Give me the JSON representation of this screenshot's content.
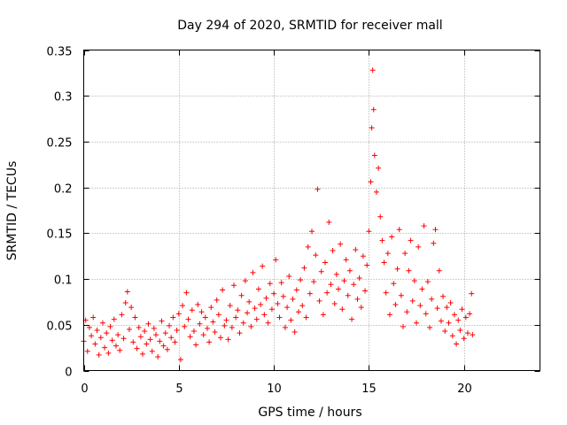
{
  "chart_data": {
    "type": "scatter",
    "title": "Day 294 of 2020, SRMTID for receiver mall",
    "xlabel": "GPS time / hours",
    "ylabel": "SRMTID / TECUs",
    "xlim": [
      0,
      24
    ],
    "ylim": [
      0,
      0.35
    ],
    "x_ticks": [
      0,
      5,
      10,
      15,
      20
    ],
    "x_tick_labels": [
      "0",
      "5",
      "10",
      "15",
      "20"
    ],
    "y_ticks": [
      0,
      0.05,
      0.1,
      0.15,
      0.2,
      0.25,
      0.3,
      0.35
    ],
    "y_tick_labels": [
      "0",
      "0.05",
      "0.1",
      "0.15",
      "0.2",
      "0.25",
      "0.3",
      "0.35"
    ],
    "grid": true,
    "marker": "+",
    "color": "#ff0000",
    "series": [
      {
        "name": "SRMTID",
        "points": [
          [
            0.0,
            0.032
          ],
          [
            0.1,
            0.055
          ],
          [
            0.2,
            0.021
          ],
          [
            0.3,
            0.047
          ],
          [
            0.4,
            0.038
          ],
          [
            0.5,
            0.058
          ],
          [
            0.6,
            0.029
          ],
          [
            0.7,
            0.044
          ],
          [
            0.8,
            0.017
          ],
          [
            0.9,
            0.036
          ],
          [
            1.0,
            0.052
          ],
          [
            1.1,
            0.025
          ],
          [
            1.2,
            0.041
          ],
          [
            1.3,
            0.019
          ],
          [
            1.4,
            0.048
          ],
          [
            1.5,
            0.033
          ],
          [
            1.6,
            0.056
          ],
          [
            1.7,
            0.027
          ],
          [
            1.8,
            0.039
          ],
          [
            1.9,
            0.022
          ],
          [
            2.0,
            0.061
          ],
          [
            2.1,
            0.035
          ],
          [
            2.2,
            0.074
          ],
          [
            2.3,
            0.086
          ],
          [
            2.4,
            0.045
          ],
          [
            2.5,
            0.069
          ],
          [
            2.6,
            0.031
          ],
          [
            2.7,
            0.058
          ],
          [
            2.8,
            0.024
          ],
          [
            2.9,
            0.047
          ],
          [
            3.0,
            0.037
          ],
          [
            3.1,
            0.018
          ],
          [
            3.2,
            0.043
          ],
          [
            3.3,
            0.029
          ],
          [
            3.4,
            0.051
          ],
          [
            3.5,
            0.034
          ],
          [
            3.6,
            0.021
          ],
          [
            3.7,
            0.046
          ],
          [
            3.8,
            0.039
          ],
          [
            3.9,
            0.015
          ],
          [
            4.0,
            0.032
          ],
          [
            4.1,
            0.054
          ],
          [
            4.2,
            0.027
          ],
          [
            4.3,
            0.041
          ],
          [
            4.4,
            0.023
          ],
          [
            4.5,
            0.049
          ],
          [
            4.6,
            0.036
          ],
          [
            4.7,
            0.058
          ],
          [
            4.8,
            0.031
          ],
          [
            4.9,
            0.044
          ],
          [
            5.0,
            0.062
          ],
          [
            5.1,
            0.012
          ],
          [
            5.2,
            0.071
          ],
          [
            5.3,
            0.048
          ],
          [
            5.4,
            0.085
          ],
          [
            5.5,
            0.056
          ],
          [
            5.6,
            0.037
          ],
          [
            5.7,
            0.066
          ],
          [
            5.8,
            0.043
          ],
          [
            5.9,
            0.028
          ],
          [
            6.0,
            0.072
          ],
          [
            6.1,
            0.051
          ],
          [
            6.2,
            0.064
          ],
          [
            6.3,
            0.039
          ],
          [
            6.4,
            0.058
          ],
          [
            6.5,
            0.046
          ],
          [
            6.6,
            0.031
          ],
          [
            6.7,
            0.069
          ],
          [
            6.8,
            0.053
          ],
          [
            6.9,
            0.042
          ],
          [
            7.0,
            0.077
          ],
          [
            7.1,
            0.061
          ],
          [
            7.2,
            0.036
          ],
          [
            7.3,
            0.088
          ],
          [
            7.4,
            0.049
          ],
          [
            7.5,
            0.055
          ],
          [
            7.6,
            0.034
          ],
          [
            7.7,
            0.071
          ],
          [
            7.8,
            0.047
          ],
          [
            7.9,
            0.093
          ],
          [
            8.0,
            0.058
          ],
          [
            8.1,
            0.066
          ],
          [
            8.2,
            0.041
          ],
          [
            8.3,
            0.082
          ],
          [
            8.4,
            0.052
          ],
          [
            8.5,
            0.098
          ],
          [
            8.6,
            0.063
          ],
          [
            8.7,
            0.075
          ],
          [
            8.8,
            0.048
          ],
          [
            8.9,
            0.107
          ],
          [
            9.0,
            0.068
          ],
          [
            9.1,
            0.056
          ],
          [
            9.2,
            0.089
          ],
          [
            9.3,
            0.072
          ],
          [
            9.4,
            0.114
          ],
          [
            9.5,
            0.061
          ],
          [
            9.6,
            0.079
          ],
          [
            9.7,
            0.052
          ],
          [
            9.8,
            0.095
          ],
          [
            9.9,
            0.067
          ],
          [
            10.0,
            0.084
          ],
          [
            10.1,
            0.121
          ],
          [
            10.2,
            0.073
          ],
          [
            10.3,
            0.058
          ],
          [
            10.4,
            0.096
          ],
          [
            10.5,
            0.081
          ],
          [
            10.6,
            0.047
          ],
          [
            10.7,
            0.069
          ],
          [
            10.8,
            0.103
          ],
          [
            10.9,
            0.055
          ],
          [
            11.0,
            0.078
          ],
          [
            11.1,
            0.042
          ],
          [
            11.2,
            0.088
          ],
          [
            11.3,
            0.064
          ],
          [
            11.4,
            0.099
          ],
          [
            11.5,
            0.071
          ],
          [
            11.6,
            0.112
          ],
          [
            11.7,
            0.058
          ],
          [
            11.8,
            0.135
          ],
          [
            11.9,
            0.084
          ],
          [
            12.0,
            0.152
          ],
          [
            12.1,
            0.097
          ],
          [
            12.2,
            0.126
          ],
          [
            12.3,
            0.198
          ],
          [
            12.4,
            0.076
          ],
          [
            12.5,
            0.108
          ],
          [
            12.6,
            0.061
          ],
          [
            12.7,
            0.118
          ],
          [
            12.8,
            0.085
          ],
          [
            12.9,
            0.162
          ],
          [
            13.0,
            0.094
          ],
          [
            13.1,
            0.131
          ],
          [
            13.2,
            0.073
          ],
          [
            13.3,
            0.105
          ],
          [
            13.4,
            0.089
          ],
          [
            13.5,
            0.138
          ],
          [
            13.6,
            0.067
          ],
          [
            13.7,
            0.098
          ],
          [
            13.8,
            0.121
          ],
          [
            13.9,
            0.082
          ],
          [
            14.0,
            0.109
          ],
          [
            14.1,
            0.056
          ],
          [
            14.2,
            0.094
          ],
          [
            14.3,
            0.132
          ],
          [
            14.4,
            0.078
          ],
          [
            14.5,
            0.101
          ],
          [
            14.6,
            0.069
          ],
          [
            14.7,
            0.125
          ],
          [
            14.8,
            0.087
          ],
          [
            14.9,
            0.115
          ],
          [
            15.0,
            0.152
          ],
          [
            15.1,
            0.206
          ],
          [
            15.15,
            0.265
          ],
          [
            15.2,
            0.328
          ],
          [
            15.25,
            0.285
          ],
          [
            15.3,
            0.235
          ],
          [
            15.4,
            0.195
          ],
          [
            15.5,
            0.221
          ],
          [
            15.6,
            0.168
          ],
          [
            15.7,
            0.142
          ],
          [
            15.8,
            0.118
          ],
          [
            15.9,
            0.085
          ],
          [
            16.0,
            0.128
          ],
          [
            16.1,
            0.061
          ],
          [
            16.2,
            0.146
          ],
          [
            16.3,
            0.095
          ],
          [
            16.4,
            0.072
          ],
          [
            16.5,
            0.111
          ],
          [
            16.6,
            0.154
          ],
          [
            16.7,
            0.082
          ],
          [
            16.8,
            0.048
          ],
          [
            16.9,
            0.128
          ],
          [
            17.0,
            0.064
          ],
          [
            17.1,
            0.109
          ],
          [
            17.2,
            0.142
          ],
          [
            17.3,
            0.076
          ],
          [
            17.4,
            0.098
          ],
          [
            17.5,
            0.052
          ],
          [
            17.6,
            0.135
          ],
          [
            17.7,
            0.071
          ],
          [
            17.8,
            0.089
          ],
          [
            17.9,
            0.158
          ],
          [
            18.0,
            0.062
          ],
          [
            18.1,
            0.097
          ],
          [
            18.2,
            0.047
          ],
          [
            18.3,
            0.078
          ],
          [
            18.4,
            0.139
          ],
          [
            18.5,
            0.154
          ],
          [
            18.6,
            0.068
          ],
          [
            18.7,
            0.109
          ],
          [
            18.8,
            0.054
          ],
          [
            18.9,
            0.081
          ],
          [
            19.0,
            0.043
          ],
          [
            19.1,
            0.069
          ],
          [
            19.2,
            0.052
          ],
          [
            19.3,
            0.074
          ],
          [
            19.4,
            0.038
          ],
          [
            19.5,
            0.061
          ],
          [
            19.6,
            0.029
          ],
          [
            19.7,
            0.055
          ],
          [
            19.8,
            0.044
          ],
          [
            19.9,
            0.067
          ],
          [
            20.0,
            0.035
          ],
          [
            20.1,
            0.058
          ],
          [
            20.2,
            0.041
          ],
          [
            20.3,
            0.062
          ],
          [
            20.4,
            0.084
          ],
          [
            20.45,
            0.039
          ]
        ]
      }
    ]
  }
}
